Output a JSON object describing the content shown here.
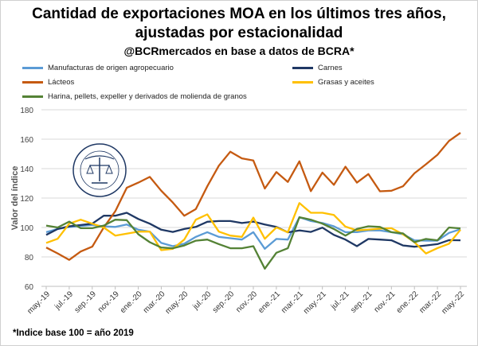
{
  "title_line1": "Cantidad de exportaciones MOA en los últimos tres años,",
  "title_line2": "ajustadas por estacionalidad",
  "subtitle": "@BCRmercados en base a datos de BCRA*",
  "footnote": "*Indice base 100 = año 2019",
  "logo_text": "BOLSA DE COMERCIO DE ROSARIO",
  "chart_data": {
    "type": "line",
    "ylabel": "Valor del índice",
    "ylim": [
      60,
      180
    ],
    "yticks": [
      60,
      80,
      100,
      120,
      140,
      160,
      180
    ],
    "grid": true,
    "legend_position": "top",
    "x": [
      "may-19",
      "jun-19",
      "jul-19",
      "ago-19",
      "sep-19",
      "oct-19",
      "nov-19",
      "dic-19",
      "ene-20",
      "feb-20",
      "mar-20",
      "abr-20",
      "may-20",
      "jun-20",
      "jul-20",
      "ago-20",
      "sep-20",
      "oct-20",
      "nov-20",
      "dic-20",
      "ene-21",
      "feb-21",
      "mar-21",
      "abr-21",
      "may-21",
      "jun-21",
      "jul-21",
      "ago-21",
      "sep-21",
      "oct-21",
      "nov-21",
      "dic-21",
      "ene-22",
      "feb-22",
      "mar-22",
      "abr-22",
      "may-22"
    ],
    "xtick_labels": [
      "may.-19",
      "jul.-19",
      "sep.-19",
      "nov.-19",
      "ene.-20",
      "mar.-20",
      "may.-20",
      "jul.-20",
      "sep.-20",
      "nov.-20",
      "ene.-21",
      "mar.-21",
      "may.-21",
      "jul.-21",
      "sep.-21",
      "nov.-21",
      "ene.-22",
      "mar.-22",
      "may.-22"
    ],
    "series": [
      {
        "name": "Manufacturas de origen agropecuario",
        "color": "#5B9BD5",
        "values": [
          96.8,
          99,
          100.3,
          101,
          101.7,
          100.8,
          100.4,
          102,
          98.5,
          97.2,
          89.5,
          87.3,
          89,
          93.6,
          96.8,
          93.6,
          92.7,
          91.8,
          96.8,
          85.5,
          92.2,
          91.8,
          107,
          104.4,
          103,
          100.8,
          96.8,
          96.8,
          98,
          98,
          96.8,
          95.4,
          91.3,
          91,
          91,
          96.3,
          98.8
        ]
      },
      {
        "name": "Carnes",
        "color": "#1F3864",
        "values": [
          95,
          99,
          100.8,
          101.7,
          102.6,
          108,
          108,
          110,
          105.8,
          102.6,
          98.5,
          97,
          99,
          100.4,
          103.9,
          104.4,
          104.4,
          103,
          104,
          102,
          100.4,
          96.7,
          98,
          97,
          99.9,
          95,
          91.8,
          87.3,
          92.2,
          91.8,
          91.3,
          87.8,
          86.9,
          87.8,
          88.7,
          91.4,
          91.3
        ]
      },
      {
        "name": "Lácteos",
        "color": "#C55A11",
        "values": [
          86.4,
          82.4,
          78,
          83.7,
          87,
          100,
          111,
          127,
          130.5,
          134.4,
          125,
          117,
          108,
          112.5,
          128,
          142,
          151.5,
          147,
          145.5,
          126.5,
          137.7,
          131,
          145,
          124.7,
          137.3,
          129,
          141.3,
          130.5,
          136.3,
          124.6,
          125,
          128,
          136.8,
          143,
          149.4,
          158.8,
          164.3
        ]
      },
      {
        "name": "Grasas y aceites",
        "color": "#FFC000",
        "values": [
          89.5,
          92.3,
          102.6,
          105.3,
          102.6,
          100,
          94.5,
          95.8,
          97.2,
          97.2,
          84.6,
          85.5,
          91.8,
          105.3,
          108.9,
          97.2,
          94.5,
          93.6,
          106.7,
          92.3,
          100,
          96.7,
          116.6,
          110,
          110,
          108.5,
          100.6,
          98,
          98.6,
          99.2,
          99.5,
          95.4,
          90,
          82.3,
          86,
          89,
          98.5
        ]
      },
      {
        "name": "Harina, pellets, expeller y derivados de molienda de granos",
        "color": "#548235",
        "values": [
          101.3,
          100,
          104,
          99.5,
          99.5,
          101.3,
          105.3,
          105,
          95.4,
          90,
          86.4,
          85.9,
          87.8,
          91,
          91.8,
          88.7,
          85.9,
          85.9,
          87.3,
          72,
          82.8,
          85.9,
          107,
          105.3,
          102.6,
          99,
          94.5,
          99,
          100.8,
          100.4,
          96.8,
          96,
          90,
          92.2,
          91.3,
          100,
          99.4
        ]
      }
    ]
  }
}
